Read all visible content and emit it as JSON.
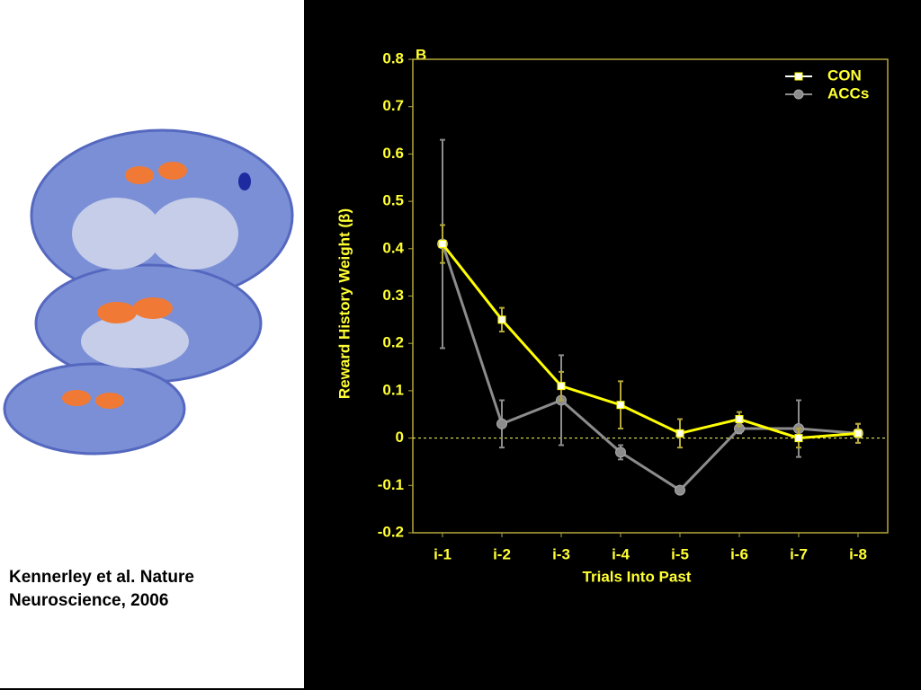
{
  "caption": [
    "Kennerley et al.  Nature",
    "Neuroscience, 2006"
  ],
  "chart_data": {
    "type": "line",
    "panel_label": "B",
    "x_label": "Trials Into Past",
    "y_label": "Reward History Weight (β)",
    "categories": [
      "i-1",
      "i-2",
      "i-3",
      "i-4",
      "i-5",
      "i-6",
      "i-7",
      "i-8"
    ],
    "series": [
      {
        "name": "CON",
        "color": "#ffff00",
        "marker": "square",
        "values": [
          0.41,
          0.25,
          0.11,
          0.07,
          0.01,
          0.04,
          0.0,
          0.01
        ],
        "errors": [
          0.04,
          0.025,
          0.03,
          0.05,
          0.03,
          0.015,
          0.02,
          0.02
        ]
      },
      {
        "name": "ACCs",
        "color": "#8c8c8c",
        "marker": "circle",
        "values": [
          0.41,
          0.03,
          0.08,
          -0.03,
          -0.11,
          0.02,
          0.02,
          0.01
        ],
        "errors": [
          0.22,
          0.05,
          0.095,
          0.015,
          0.005,
          0.01,
          0.06,
          0.02
        ]
      }
    ],
    "ylim": [
      -0.2,
      0.8
    ],
    "yticks": [
      -0.2,
      -0.1,
      0.0,
      0.1,
      0.2,
      0.3,
      0.4,
      0.5,
      0.6,
      0.7,
      0.8
    ],
    "reference_line": 0,
    "legend": "upper right"
  }
}
